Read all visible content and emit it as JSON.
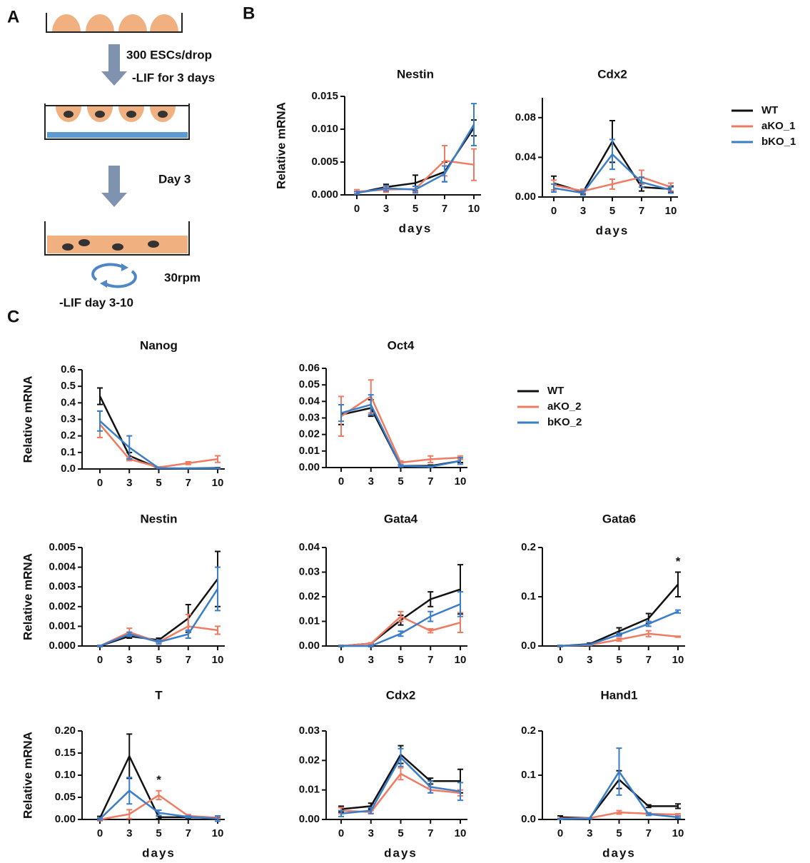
{
  "panels": [
    "A",
    "B",
    "C"
  ],
  "diagram": {
    "step1": "300 ESCs/drop",
    "step2": "-LIF for 3 days",
    "step3": "Day 3",
    "speed": "30rpm",
    "step4": "-LIF day 3-10"
  },
  "chart_data": [
    {
      "type": "line",
      "title": "Nestin",
      "ylabel": "Relative mRNA",
      "xlabel": "days",
      "categories": [
        "0",
        "3",
        "5",
        "7",
        "10"
      ],
      "ylim": [
        0,
        0.015
      ],
      "yticks": [
        {
          "value": 0,
          "label": "0.000"
        },
        0.005,
        {
          "value": 0.01,
          "label": "0.010"
        },
        0.015
      ],
      "series": [
        {
          "color": "#111111",
          "values": [
            0.0003,
            0.0012,
            0.0018,
            0.0035,
            0.0102
          ],
          "errors": [
            0.0002,
            0.0004,
            0.0012,
            0.0015,
            0.0012
          ]
        },
        {
          "color": "#ef7b63",
          "values": [
            0.0005,
            0.0008,
            0.0009,
            0.0052,
            0.0046
          ],
          "errors": [
            0.0003,
            0.0004,
            0.0004,
            0.0023,
            0.0024
          ]
        },
        {
          "color": "#3a7dc8",
          "values": [
            0.0003,
            0.001,
            0.0008,
            0.0032,
            0.0107
          ],
          "errors": [
            0.0002,
            0.0004,
            0.0005,
            0.0012,
            0.0032
          ]
        }
      ]
    },
    {
      "type": "line",
      "title": "Cdx2",
      "xlabel": "days",
      "legend": true,
      "categories": [
        "0",
        "3",
        "5",
        "7",
        "10"
      ],
      "ylim": [
        0,
        0.1
      ],
      "yticks": [
        {
          "value": 0,
          "label": "0.00"
        },
        0.04,
        0.08
      ],
      "series": [
        {
          "name": "WT",
          "color": "#111111",
          "values": [
            0.014,
            0.005,
            0.056,
            0.01,
            0.008
          ],
          "errors": [
            0.007,
            0.002,
            0.021,
            0.004,
            0.003
          ]
        },
        {
          "name": "aKO_1",
          "color": "#ef7b63",
          "values": [
            0.012,
            0.006,
            0.013,
            0.02,
            0.01
          ],
          "errors": [
            0.005,
            0.002,
            0.005,
            0.007,
            0.004
          ]
        },
        {
          "name": "bKO_1",
          "color": "#3a7dc8",
          "values": [
            0.009,
            0.004,
            0.043,
            0.015,
            0.007
          ],
          "errors": [
            0.004,
            0.002,
            0.015,
            0.005,
            0.003
          ]
        }
      ]
    },
    {
      "type": "line",
      "title": "Nanog",
      "ylabel": "Relative mRNA",
      "categories": [
        "0",
        "3",
        "5",
        "7",
        "10"
      ],
      "ylim": [
        0,
        0.6
      ],
      "yticks": [
        {
          "value": 0,
          "label": "0.0"
        },
        0.1,
        0.2,
        0.3,
        0.4,
        0.5,
        0.6
      ],
      "series": [
        {
          "color": "#111111",
          "values": [
            0.44,
            0.08,
            0.004,
            0.004,
            0.006
          ],
          "errors": [
            0.05,
            0.02,
            0.002,
            0.001,
            0.002
          ]
        },
        {
          "color": "#ef7b63",
          "values": [
            0.27,
            0.06,
            0.01,
            0.035,
            0.06
          ],
          "errors": [
            0.08,
            0.01,
            0.003,
            0.008,
            0.02
          ]
        },
        {
          "color": "#3a7dc8",
          "values": [
            0.29,
            0.13,
            0.005,
            0.003,
            0.004
          ],
          "errors": [
            0.06,
            0.07,
            0.002,
            0.001,
            0.002
          ]
        }
      ]
    },
    {
      "type": "line",
      "title": "Oct4",
      "legend": true,
      "categories": [
        "0",
        "3",
        "5",
        "7",
        "10"
      ],
      "ylim": [
        0,
        0.06
      ],
      "yticks": [
        {
          "value": 0,
          "label": "0.00"
        },
        0.01,
        0.02,
        0.03,
        0.04,
        0.05,
        0.06
      ],
      "series": [
        {
          "name": "WT",
          "color": "#111111",
          "values": [
            0.032,
            0.036,
            0.001,
            0.001,
            0.004
          ],
          "errors": [
            0.006,
            0.005,
            0.0005,
            0.0005,
            0.001
          ]
        },
        {
          "name": "aKO_2",
          "color": "#ef7b63",
          "values": [
            0.031,
            0.043,
            0.003,
            0.005,
            0.006
          ],
          "errors": [
            0.012,
            0.01,
            0.001,
            0.002,
            0.001
          ]
        },
        {
          "name": "bKO_2",
          "color": "#3a7dc8",
          "values": [
            0.033,
            0.038,
            0.001,
            0.0005,
            0.004
          ],
          "errors": [
            0.005,
            0.006,
            0.0005,
            0.0003,
            0.002
          ]
        }
      ]
    },
    {
      "type": "line",
      "title": "Nestin",
      "ylabel": "Relative mRNA",
      "categories": [
        "0",
        "3",
        "5",
        "7",
        "10"
      ],
      "ylim": [
        0,
        0.005
      ],
      "yticks": [
        {
          "value": 0,
          "label": "0.000"
        },
        0.001,
        0.002,
        0.003,
        0.004,
        0.005
      ],
      "series": [
        {
          "color": "#111111",
          "values": [
            0,
            0.0005,
            0.0003,
            0.0014,
            0.0034
          ],
          "errors": [
            3e-05,
            0.0001,
            0.0001,
            0.0007,
            0.0014
          ]
        },
        {
          "color": "#ef7b63",
          "values": [
            0,
            0.0007,
            0.0002,
            0.001,
            0.0008
          ],
          "errors": [
            3e-05,
            0.0002,
            0.0001,
            0.0006,
            0.0002
          ]
        },
        {
          "color": "#3a7dc8",
          "values": [
            0,
            0.0006,
            0.0002,
            0.0006,
            0.0029
          ],
          "errors": [
            3e-05,
            0.0001,
            0.0001,
            0.0002,
            0.0011
          ]
        }
      ]
    },
    {
      "type": "line",
      "title": "Gata4",
      "categories": [
        "0",
        "3",
        "5",
        "7",
        "10"
      ],
      "ylim": [
        0,
        0.04
      ],
      "yticks": [
        {
          "value": 0,
          "label": "0.00"
        },
        0.01,
        0.02,
        0.03,
        0.04
      ],
      "series": [
        {
          "color": "#111111",
          "values": [
            0,
            0.001,
            0.0105,
            0.019,
            0.023
          ],
          "errors": [
            0.0002,
            0.0003,
            0.002,
            0.003,
            0.01
          ]
        },
        {
          "color": "#ef7b63",
          "values": [
            0,
            0.001,
            0.012,
            0.0062,
            0.0095
          ],
          "errors": [
            0.0002,
            0.0003,
            0.002,
            0.0008,
            0.004
          ]
        },
        {
          "color": "#3a7dc8",
          "values": [
            0,
            0,
            0.005,
            0.012,
            0.017
          ],
          "errors": [
            0.0002,
            0.0003,
            0.001,
            0.002,
            0.005
          ]
        }
      ]
    },
    {
      "type": "line",
      "title": "Gata6",
      "categories": [
        "0",
        "3",
        "5",
        "7",
        "10"
      ],
      "ylim": [
        0,
        0.2
      ],
      "yticks": [
        {
          "value": 0,
          "label": "0.0"
        },
        0.1,
        0.2
      ],
      "annotations": [
        {
          "text": "*",
          "at": "10"
        }
      ],
      "series": [
        {
          "color": "#111111",
          "values": [
            0,
            0.004,
            0.03,
            0.056,
            0.125
          ],
          "errors": [
            0.001,
            0.002,
            0.007,
            0.01,
            0.025
          ]
        },
        {
          "color": "#ef7b63",
          "values": [
            0,
            0.002,
            0.013,
            0.025,
            0.019
          ],
          "errors": [
            0.001,
            0.001,
            0.003,
            0.006,
            0.001
          ]
        },
        {
          "color": "#3a7dc8",
          "values": [
            0,
            0.003,
            0.023,
            0.045,
            0.07
          ],
          "errors": [
            0.001,
            0.001,
            0.003,
            0.005,
            0.003
          ]
        }
      ]
    },
    {
      "type": "line",
      "title": "T",
      "ylabel": "Relative mRNA",
      "xlabel": "days",
      "categories": [
        "0",
        "3",
        "5",
        "7",
        "10"
      ],
      "ylim": [
        0,
        0.2
      ],
      "yticks": [
        {
          "value": 0,
          "label": "0.00"
        },
        0.05,
        {
          "value": 0.1,
          "label": "0.10"
        },
        0.15,
        {
          "value": 0.2,
          "label": "0.20"
        }
      ],
      "annotations": [
        {
          "text": "*",
          "at": "5"
        }
      ],
      "series": [
        {
          "color": "#111111",
          "values": [
            0.003,
            0.143,
            0.005,
            0.005,
            0.003
          ],
          "errors": [
            0.004,
            0.05,
            0.003,
            0.002,
            0.002
          ]
        },
        {
          "color": "#ef7b63",
          "values": [
            0,
            0.012,
            0.055,
            0.008,
            0.004
          ],
          "errors": [
            0.003,
            0.01,
            0.01,
            0.003,
            0.002
          ]
        },
        {
          "color": "#3a7dc8",
          "values": [
            0.001,
            0.065,
            0.015,
            0.006,
            0.002
          ],
          "errors": [
            0.002,
            0.03,
            0.006,
            0.002,
            0.006
          ]
        }
      ]
    },
    {
      "type": "line",
      "title": "Cdx2",
      "xlabel": "days",
      "categories": [
        "0",
        "3",
        "5",
        "7",
        "10"
      ],
      "ylim": [
        0,
        0.03
      ],
      "yticks": [
        {
          "value": 0,
          "label": "0.00"
        },
        0.01,
        0.02,
        0.03
      ],
      "series": [
        {
          "color": "#111111",
          "values": [
            0.0035,
            0.0045,
            0.022,
            0.013,
            0.013
          ],
          "errors": [
            0.001,
            0.001,
            0.003,
            0.001,
            0.004
          ]
        },
        {
          "color": "#ef7b63",
          "values": [
            0.003,
            0.0025,
            0.0155,
            0.01,
            0.009
          ],
          "errors": [
            0.001,
            0.0005,
            0.002,
            0.001,
            0.001
          ]
        },
        {
          "color": "#3a7dc8",
          "values": [
            0.002,
            0.003,
            0.021,
            0.011,
            0.0095
          ],
          "errors": [
            0.001,
            0.001,
            0.003,
            0.002,
            0.003
          ]
        }
      ]
    },
    {
      "type": "line",
      "title": "Hand1",
      "xlabel": "days",
      "categories": [
        "0",
        "3",
        "5",
        "7",
        "10"
      ],
      "ylim": [
        0,
        0.2
      ],
      "yticks": [
        {
          "value": 0,
          "label": "0.0"
        },
        0.1,
        0.2
      ],
      "series": [
        {
          "color": "#111111",
          "values": [
            0.005,
            0.003,
            0.09,
            0.03,
            0.03
          ],
          "errors": [
            0.003,
            0.001,
            0.02,
            0.003,
            0.005
          ]
        },
        {
          "color": "#ef7b63",
          "values": [
            0.002,
            0.003,
            0.016,
            0.013,
            0.011
          ],
          "errors": [
            0.001,
            0.001,
            0.004,
            0.002,
            0.002
          ]
        },
        {
          "color": "#3a7dc8",
          "values": [
            0.001,
            0.002,
            0.108,
            0.012,
            0.005
          ],
          "errors": [
            0.001,
            0.001,
            0.053,
            0.003,
            0.002
          ]
        }
      ]
    }
  ]
}
